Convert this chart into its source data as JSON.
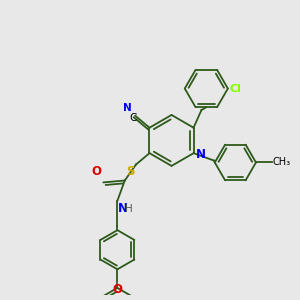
{
  "background_color": "#e8e8e8",
  "gc": "#2d5a1b",
  "colors": {
    "N": "#0000ee",
    "O": "#dd0000",
    "S": "#ccaa00",
    "Cl": "#7fff00",
    "C": "#000000",
    "H": "#555555"
  },
  "lw": 1.3,
  "fs": 7.5
}
